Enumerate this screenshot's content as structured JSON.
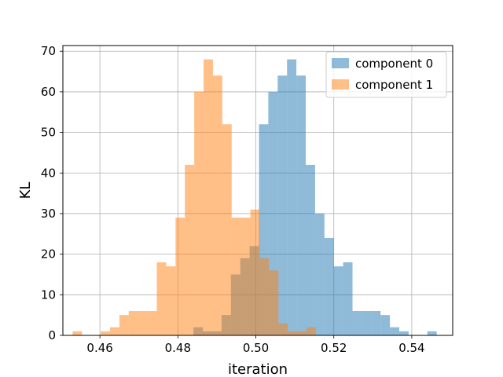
{
  "chart_data": {
    "type": "histogram",
    "xlabel": "iteration",
    "ylabel": "KL",
    "xlim": [
      0.4505,
      0.5505
    ],
    "ylim": [
      0,
      71.4
    ],
    "x_ticks": [
      0.46,
      0.48,
      0.5,
      0.52,
      0.54
    ],
    "x_tick_labels": [
      "0.46",
      "0.48",
      "0.50",
      "0.52",
      "0.54"
    ],
    "y_ticks": [
      0,
      10,
      20,
      30,
      40,
      50,
      60,
      70
    ],
    "y_tick_labels": [
      "0",
      "10",
      "20",
      "30",
      "40",
      "50",
      "60",
      "70"
    ],
    "grid": true,
    "legend_position": "top-right",
    "series": [
      {
        "name": "component 0",
        "color": "#1f77b4",
        "alpha": 0.5,
        "bins": [
          {
            "x0": 0.484,
            "x1": 0.4864,
            "count": 2
          },
          {
            "x0": 0.4864,
            "x1": 0.4888,
            "count": 1
          },
          {
            "x0": 0.4888,
            "x1": 0.4912,
            "count": 1
          },
          {
            "x0": 0.4912,
            "x1": 0.4936,
            "count": 5
          },
          {
            "x0": 0.4936,
            "x1": 0.496,
            "count": 15
          },
          {
            "x0": 0.496,
            "x1": 0.4984,
            "count": 19
          },
          {
            "x0": 0.4984,
            "x1": 0.5008,
            "count": 22
          },
          {
            "x0": 0.5008,
            "x1": 0.5032,
            "count": 52
          },
          {
            "x0": 0.5032,
            "x1": 0.5056,
            "count": 60
          },
          {
            "x0": 0.5056,
            "x1": 0.508,
            "count": 64
          },
          {
            "x0": 0.508,
            "x1": 0.5104,
            "count": 68
          },
          {
            "x0": 0.5104,
            "x1": 0.5128,
            "count": 64
          },
          {
            "x0": 0.5128,
            "x1": 0.5152,
            "count": 42
          },
          {
            "x0": 0.5152,
            "x1": 0.5176,
            "count": 30
          },
          {
            "x0": 0.5176,
            "x1": 0.52,
            "count": 24
          },
          {
            "x0": 0.52,
            "x1": 0.5224,
            "count": 17
          },
          {
            "x0": 0.5224,
            "x1": 0.5248,
            "count": 18
          },
          {
            "x0": 0.5248,
            "x1": 0.5272,
            "count": 6
          },
          {
            "x0": 0.5272,
            "x1": 0.5296,
            "count": 6
          },
          {
            "x0": 0.5296,
            "x1": 0.532,
            "count": 6
          },
          {
            "x0": 0.532,
            "x1": 0.5344,
            "count": 5
          },
          {
            "x0": 0.5344,
            "x1": 0.5368,
            "count": 2
          },
          {
            "x0": 0.5368,
            "x1": 0.5392,
            "count": 1
          },
          {
            "x0": 0.544,
            "x1": 0.5464,
            "count": 1
          }
        ]
      },
      {
        "name": "component 1",
        "color": "#ff7f0e",
        "alpha": 0.5,
        "bins": [
          {
            "x0": 0.453,
            "x1": 0.4554,
            "count": 1
          },
          {
            "x0": 0.4602,
            "x1": 0.4626,
            "count": 1
          },
          {
            "x0": 0.4626,
            "x1": 0.465,
            "count": 2
          },
          {
            "x0": 0.465,
            "x1": 0.4674,
            "count": 5
          },
          {
            "x0": 0.4674,
            "x1": 0.4698,
            "count": 6
          },
          {
            "x0": 0.4698,
            "x1": 0.4722,
            "count": 6
          },
          {
            "x0": 0.4722,
            "x1": 0.4746,
            "count": 6
          },
          {
            "x0": 0.4746,
            "x1": 0.477,
            "count": 18
          },
          {
            "x0": 0.477,
            "x1": 0.4794,
            "count": 17
          },
          {
            "x0": 0.4794,
            "x1": 0.4818,
            "count": 29
          },
          {
            "x0": 0.4818,
            "x1": 0.4842,
            "count": 42
          },
          {
            "x0": 0.4842,
            "x1": 0.4866,
            "count": 60
          },
          {
            "x0": 0.4866,
            "x1": 0.489,
            "count": 68
          },
          {
            "x0": 0.489,
            "x1": 0.4914,
            "count": 64
          },
          {
            "x0": 0.4914,
            "x1": 0.4938,
            "count": 52
          },
          {
            "x0": 0.4938,
            "x1": 0.4962,
            "count": 29
          },
          {
            "x0": 0.4962,
            "x1": 0.4986,
            "count": 29
          },
          {
            "x0": 0.4986,
            "x1": 0.501,
            "count": 31
          },
          {
            "x0": 0.501,
            "x1": 0.5034,
            "count": 19
          },
          {
            "x0": 0.5034,
            "x1": 0.5058,
            "count": 16
          },
          {
            "x0": 0.5058,
            "x1": 0.5082,
            "count": 3
          },
          {
            "x0": 0.5082,
            "x1": 0.5106,
            "count": 1
          },
          {
            "x0": 0.5106,
            "x1": 0.513,
            "count": 1
          },
          {
            "x0": 0.513,
            "x1": 0.5154,
            "count": 2
          }
        ]
      }
    ]
  }
}
